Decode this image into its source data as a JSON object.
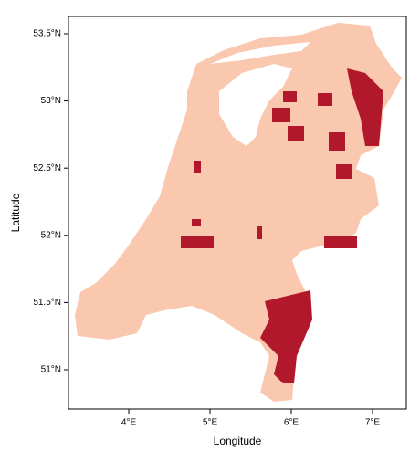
{
  "chart_data": {
    "type": "map",
    "xlabel": "Longitude",
    "ylabel": "Latitude",
    "xlim": [
      3.258,
      7.416
    ],
    "ylim": [
      50.708,
      53.629
    ],
    "xticks": [
      {
        "value": 4,
        "label": "4°E"
      },
      {
        "value": 5,
        "label": "5°E"
      },
      {
        "value": 6,
        "label": "6°E"
      },
      {
        "value": 7,
        "label": "7°E"
      }
    ],
    "yticks": [
      {
        "value": 51,
        "label": "51°N"
      },
      {
        "value": 51.5,
        "label": "51.5°N"
      },
      {
        "value": 52,
        "label": "52°N"
      },
      {
        "value": 52.5,
        "label": "52.5°N"
      },
      {
        "value": 53,
        "label": "53°N"
      },
      {
        "value": 53.5,
        "label": "53.5°N"
      }
    ]
  }
}
